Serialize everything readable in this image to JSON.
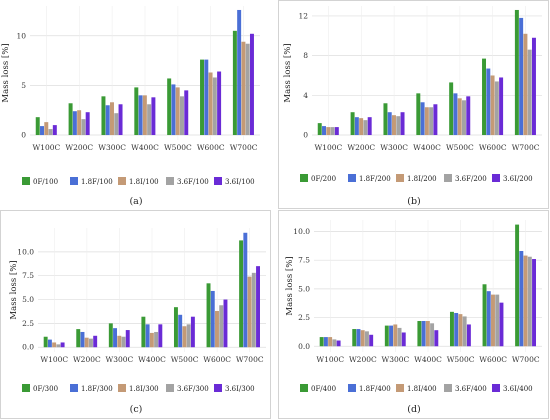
{
  "panels": [
    {
      "caption": "(a)"
    },
    {
      "caption": "(b)"
    },
    {
      "caption": "(c)"
    },
    {
      "caption": "(d)"
    }
  ],
  "chart_data": [
    {
      "type": "bar",
      "categories": [
        "W100C",
        "W200C",
        "W300C",
        "W400C",
        "W500C",
        "W600C",
        "W700C"
      ],
      "ylabel": "Mass loss [%]",
      "ylim": [
        -0.5,
        13
      ],
      "yticks": [
        0,
        5,
        10
      ],
      "grid": true,
      "legend_position": "bottom",
      "series": [
        {
          "name": "0F/100",
          "color": "#3a9a35",
          "values": [
            1.8,
            3.2,
            3.9,
            4.8,
            5.7,
            7.6,
            10.5
          ]
        },
        {
          "name": "1.8F/100",
          "color": "#4a6fd6",
          "values": [
            0.9,
            2.4,
            3.0,
            4.0,
            5.1,
            7.6,
            12.6
          ]
        },
        {
          "name": "1.8I/100",
          "color": "#c49a76",
          "values": [
            1.3,
            2.5,
            3.3,
            4.0,
            4.8,
            6.3,
            9.4
          ]
        },
        {
          "name": "3.6F/100",
          "color": "#a3a3a3",
          "values": [
            0.6,
            1.6,
            2.2,
            3.1,
            3.9,
            5.8,
            9.2
          ]
        },
        {
          "name": "3.6I/100",
          "color": "#6a2bd6",
          "values": [
            1.0,
            2.3,
            3.1,
            3.8,
            4.5,
            6.4,
            10.2
          ]
        }
      ]
    },
    {
      "type": "bar",
      "categories": [
        "W100C",
        "W200C",
        "W300C",
        "W400C",
        "W500C",
        "W600C",
        "W700C"
      ],
      "ylabel": "Mass loss [%]",
      "ylim": [
        -0.5,
        13
      ],
      "yticks": [
        0,
        4,
        8,
        12
      ],
      "grid": true,
      "legend_position": "bottom",
      "series": [
        {
          "name": "0F/200",
          "color": "#3a9a35",
          "values": [
            1.2,
            2.3,
            3.2,
            4.2,
            5.3,
            7.7,
            12.6
          ]
        },
        {
          "name": "1.8F/200",
          "color": "#4a6fd6",
          "values": [
            0.9,
            1.8,
            2.3,
            3.3,
            4.2,
            6.7,
            11.8
          ]
        },
        {
          "name": "1.8I/200",
          "color": "#c49a76",
          "values": [
            0.8,
            1.7,
            2.0,
            2.8,
            3.7,
            6.0,
            10.2
          ]
        },
        {
          "name": "3.6F/200",
          "color": "#a3a3a3",
          "values": [
            0.8,
            1.5,
            1.9,
            2.8,
            3.5,
            5.4,
            8.6
          ]
        },
        {
          "name": "3.6I/200",
          "color": "#6a2bd6",
          "values": [
            0.8,
            1.8,
            2.3,
            3.1,
            3.9,
            5.8,
            9.8
          ]
        }
      ]
    },
    {
      "type": "bar",
      "categories": [
        "W100C",
        "W200C",
        "W300C",
        "W400C",
        "W500C",
        "W600C",
        "W700C"
      ],
      "ylabel": "Mass loss [%]",
      "ylim": [
        -0.5,
        12.5
      ],
      "yticks": [
        0.0,
        2.5,
        5.0,
        7.5,
        10.0
      ],
      "grid": true,
      "legend_position": "bottom",
      "series": [
        {
          "name": "0F/300",
          "color": "#3a9a35",
          "values": [
            1.1,
            1.9,
            2.5,
            3.2,
            4.2,
            6.7,
            11.2
          ]
        },
        {
          "name": "1.8F/300",
          "color": "#4a6fd6",
          "values": [
            0.8,
            1.6,
            2.0,
            2.4,
            3.4,
            5.9,
            12.0
          ]
        },
        {
          "name": "1.8I/300",
          "color": "#c49a76",
          "values": [
            0.5,
            1.0,
            1.2,
            1.5,
            2.2,
            3.8,
            7.4
          ]
        },
        {
          "name": "3.6F/300",
          "color": "#a3a3a3",
          "values": [
            0.3,
            0.9,
            1.1,
            1.6,
            2.4,
            4.4,
            7.8
          ]
        },
        {
          "name": "3.6I/300",
          "color": "#6a2bd6",
          "values": [
            0.5,
            1.2,
            1.8,
            2.4,
            3.2,
            5.0,
            8.5
          ]
        }
      ]
    },
    {
      "type": "bar",
      "categories": [
        "W100C",
        "W200C",
        "W300C",
        "W400C",
        "W500C",
        "W600C",
        "W700C"
      ],
      "ylabel": "Mass loss [%]",
      "ylim": [
        -0.5,
        11
      ],
      "yticks": [
        0.0,
        2.5,
        5.0,
        7.5,
        10.0
      ],
      "grid": true,
      "legend_position": "bottom",
      "series": [
        {
          "name": "0F/400",
          "color": "#3a9a35",
          "values": [
            0.8,
            1.5,
            1.8,
            2.2,
            3.0,
            5.4,
            10.6
          ]
        },
        {
          "name": "1.8F/400",
          "color": "#4a6fd6",
          "values": [
            0.8,
            1.5,
            1.8,
            2.2,
            2.9,
            4.8,
            8.3
          ]
        },
        {
          "name": "1.8I/400",
          "color": "#c49a76",
          "values": [
            0.8,
            1.4,
            1.9,
            2.2,
            2.8,
            4.5,
            7.9
          ]
        },
        {
          "name": "3.6F/400",
          "color": "#a3a3a3",
          "values": [
            0.6,
            1.3,
            1.6,
            2.0,
            2.6,
            4.5,
            7.8
          ]
        },
        {
          "name": "3.6I/400",
          "color": "#6a2bd6",
          "values": [
            0.5,
            1.0,
            1.2,
            1.4,
            1.9,
            3.8,
            7.6
          ]
        }
      ]
    }
  ]
}
